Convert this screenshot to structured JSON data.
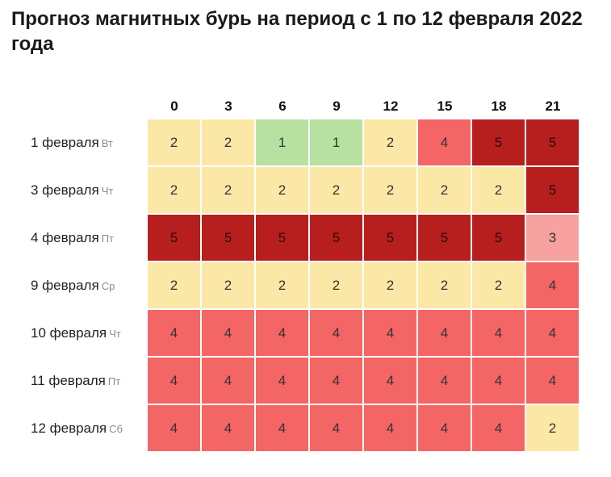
{
  "title": "Прогноз магнитных бурь на период с 1 по 12 февраля 2022 года",
  "colors": {
    "1": "#b7e1a1",
    "2": "#fce8a6",
    "3": "#f7a1a1",
    "4": "#f46565",
    "5": "#b71f1f"
  },
  "chart_data": {
    "type": "heatmap",
    "title": "Прогноз магнитных бурь на период с 1 по 12 февраля 2022 года",
    "x": [
      "0",
      "3",
      "6",
      "9",
      "12",
      "15",
      "18",
      "21"
    ],
    "rows": [
      {
        "date": "1 февраля",
        "dow": "Вт",
        "values": [
          2,
          2,
          1,
          1,
          2,
          4,
          5,
          5
        ]
      },
      {
        "date": "3 февраля",
        "dow": "Чт",
        "values": [
          2,
          2,
          2,
          2,
          2,
          2,
          2,
          5
        ]
      },
      {
        "date": "4 февраля",
        "dow": "Пт",
        "values": [
          5,
          5,
          5,
          5,
          5,
          5,
          5,
          3
        ]
      },
      {
        "date": "9 февраля",
        "dow": "Ср",
        "values": [
          2,
          2,
          2,
          2,
          2,
          2,
          2,
          4
        ]
      },
      {
        "date": "10 февраля",
        "dow": "Чт",
        "values": [
          4,
          4,
          4,
          4,
          4,
          4,
          4,
          4
        ]
      },
      {
        "date": "11 февраля",
        "dow": "Пт",
        "values": [
          4,
          4,
          4,
          4,
          4,
          4,
          4,
          4
        ]
      },
      {
        "date": "12 февраля",
        "dow": "Сб",
        "values": [
          4,
          4,
          4,
          4,
          4,
          4,
          4,
          2
        ]
      }
    ]
  }
}
